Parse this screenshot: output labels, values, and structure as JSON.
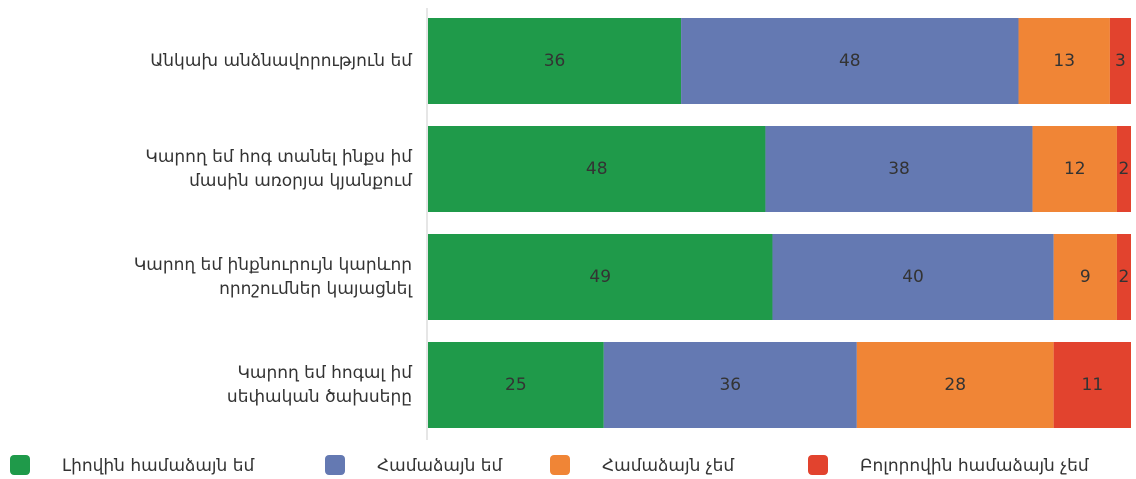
{
  "chart_data": {
    "type": "stacked-bar-horizontal",
    "categories": [
      [
        "Անկախ անձնավորություն եմ"
      ],
      [
        "Կարող եմ հոգ տանել ինքս իմ",
        "մասին առօրյա կյանքում"
      ],
      [
        "Կարող եմ ինքնուրույն կարևոր",
        "որոշումներ կայացնել"
      ],
      [
        "Կարող եմ հոգալ իմ",
        "սեփական ծախսերը"
      ]
    ],
    "series": [
      {
        "name": "Լիովին համաձայն եմ",
        "color": "#1f9a4a",
        "values": [
          36,
          48,
          49,
          25
        ]
      },
      {
        "name": "Համաձայն եմ",
        "color": "#6479b2",
        "values": [
          48,
          38,
          40,
          36
        ]
      },
      {
        "name": "Համաձայն չեմ",
        "color": "#f08536",
        "values": [
          13,
          12,
          9,
          28
        ]
      },
      {
        "name": "Բոլորովին համաձայն չեմ",
        "color": "#e2432e",
        "values": [
          3,
          2,
          2,
          11
        ]
      }
    ],
    "xlim": [
      0,
      100
    ],
    "legend": "bottom"
  }
}
